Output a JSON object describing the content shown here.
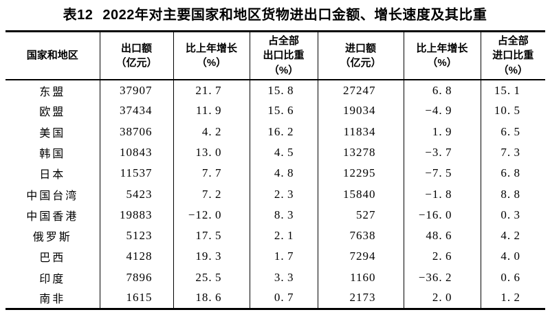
{
  "title": {
    "label": "表12",
    "text": "2022年对主要国家和地区货物进出口金额、增长速度及其比重"
  },
  "colors": {
    "background": "#ffffff",
    "text": "#000000",
    "border": "#000000"
  },
  "table": {
    "columns": [
      {
        "id": "region",
        "lines": [
          "国家和地区"
        ]
      },
      {
        "id": "export_value",
        "lines": [
          "出口额",
          "（亿元）"
        ]
      },
      {
        "id": "export_growth",
        "lines": [
          "比上年增长",
          "（%）"
        ]
      },
      {
        "id": "export_share",
        "lines": [
          "占全部",
          "出口比重",
          "（%）"
        ]
      },
      {
        "id": "import_value",
        "lines": [
          "进口额",
          "（亿元）"
        ]
      },
      {
        "id": "import_growth",
        "lines": [
          "比上年增长",
          "（%）"
        ]
      },
      {
        "id": "import_share",
        "lines": [
          "占全部",
          "进口比重",
          "（%）"
        ]
      }
    ],
    "rows": [
      {
        "region": "东盟",
        "export_value": "37907",
        "export_growth": "21.7",
        "export_share": "15.8",
        "import_value": "27247",
        "import_growth": "6.8",
        "import_share": "15.1"
      },
      {
        "region": "欧盟",
        "export_value": "37434",
        "export_growth": "11.9",
        "export_share": "15.6",
        "import_value": "19034",
        "import_growth": "-4.9",
        "import_share": "10.5"
      },
      {
        "region": "美国",
        "export_value": "38706",
        "export_growth": "4.2",
        "export_share": "16.2",
        "import_value": "11834",
        "import_growth": "1.9",
        "import_share": "6.5"
      },
      {
        "region": "韩国",
        "export_value": "10843",
        "export_growth": "13.0",
        "export_share": "4.5",
        "import_value": "13278",
        "import_growth": "-3.7",
        "import_share": "7.3"
      },
      {
        "region": "日本",
        "export_value": "11537",
        "export_growth": "7.7",
        "export_share": "4.8",
        "import_value": "12295",
        "import_growth": "-7.5",
        "import_share": "6.8"
      },
      {
        "region": "中国台湾",
        "export_value": "5423",
        "export_growth": "7.2",
        "export_share": "2.3",
        "import_value": "15840",
        "import_growth": "-1.8",
        "import_share": "8.8"
      },
      {
        "region": "中国香港",
        "export_value": "19883",
        "export_growth": "-12.0",
        "export_share": "8.3",
        "import_value": "527",
        "import_growth": "-16.0",
        "import_share": "0.3"
      },
      {
        "region": "俄罗斯",
        "export_value": "5123",
        "export_growth": "17.5",
        "export_share": "2.1",
        "import_value": "7638",
        "import_growth": "48.6",
        "import_share": "4.2"
      },
      {
        "region": "巴西",
        "export_value": "4128",
        "export_growth": "19.3",
        "export_share": "1.7",
        "import_value": "7294",
        "import_growth": "2.6",
        "import_share": "4.0"
      },
      {
        "region": "印度",
        "export_value": "7896",
        "export_growth": "25.5",
        "export_share": "3.3",
        "import_value": "1160",
        "import_growth": "-36.2",
        "import_share": "0.6"
      },
      {
        "region": "南非",
        "export_value": "1615",
        "export_growth": "18.6",
        "export_share": "0.7",
        "import_value": "2173",
        "import_growth": "2.0",
        "import_share": "1.2"
      }
    ]
  }
}
